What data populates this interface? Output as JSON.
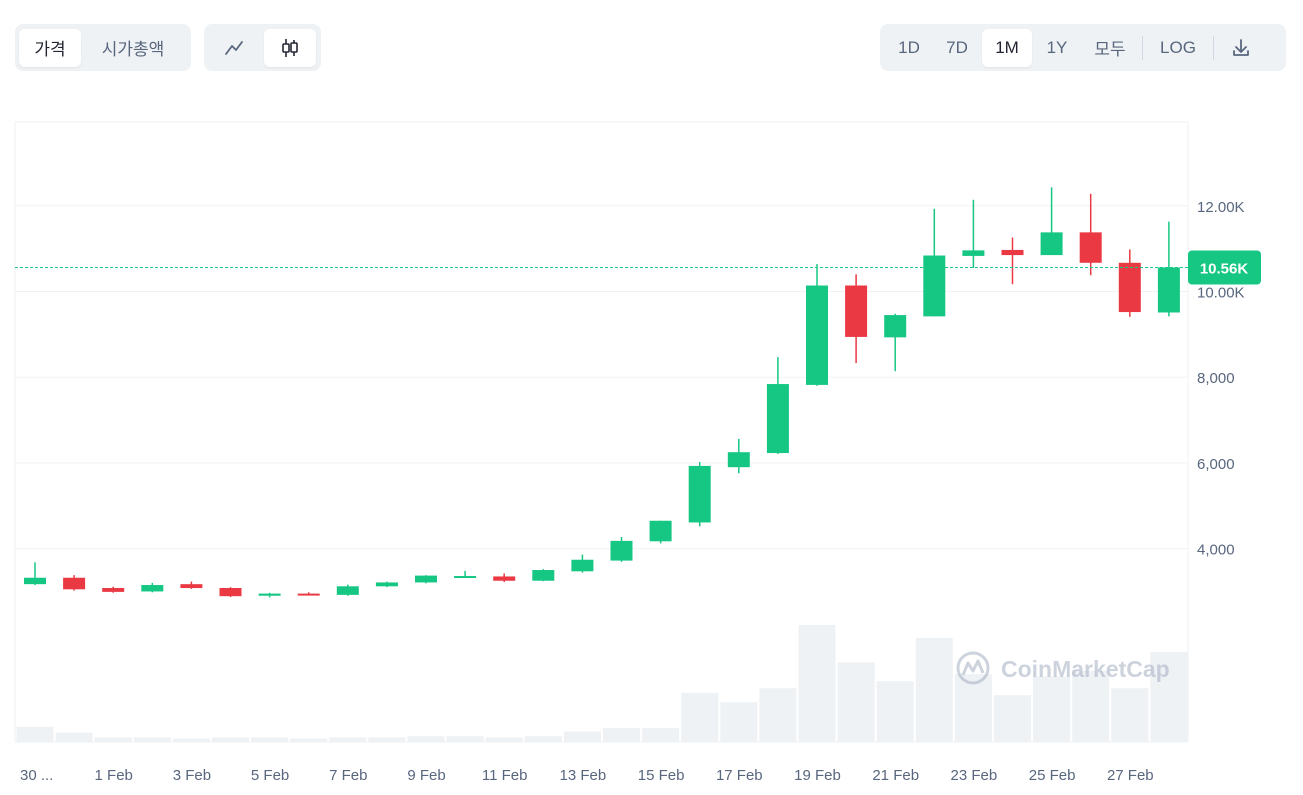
{
  "toolbar": {
    "left_tabs": [
      {
        "label": "가격",
        "active": true
      },
      {
        "label": "시가총액",
        "active": false
      }
    ],
    "chart_types": [
      {
        "icon": "line-chart-icon",
        "active": false
      },
      {
        "icon": "candlestick-chart-icon",
        "active": true
      }
    ],
    "ranges": [
      {
        "label": "1D",
        "active": false
      },
      {
        "label": "7D",
        "active": false
      },
      {
        "label": "1M",
        "active": true
      },
      {
        "label": "1Y",
        "active": false
      },
      {
        "label": "모두",
        "active": false
      }
    ],
    "log_label": "LOG",
    "download_icon": "download-icon"
  },
  "watermark": "CoinMarketCap",
  "colors": {
    "up": "#16c784",
    "down": "#ea3943",
    "volume": "#eff2f5",
    "grid": "#eff2f5",
    "current_price_line": "#16c784",
    "current_price_label_bg": "#16c784"
  },
  "chart_data": {
    "type": "candlestick",
    "title": "",
    "xlabel": "",
    "ylabel": "",
    "ylim": [
      0,
      14000
    ],
    "y_ticks": [
      {
        "value": 4000,
        "label": "4,000"
      },
      {
        "value": 6000,
        "label": "6,000"
      },
      {
        "value": 8000,
        "label": "8,000"
      },
      {
        "value": 10000,
        "label": "10.00K"
      },
      {
        "value": 12000,
        "label": "12.00K"
      }
    ],
    "x_tick_labels": [
      "30 ...",
      "1 Feb",
      "3 Feb",
      "5 Feb",
      "7 Feb",
      "9 Feb",
      "11 Feb",
      "13 Feb",
      "15 Feb",
      "17 Feb",
      "19 Feb",
      "21 Feb",
      "23 Feb",
      "25 Feb",
      "27 Feb"
    ],
    "current_price": {
      "value": 10560,
      "label": "10.56K"
    },
    "grid": true,
    "volume_scale_max": 100,
    "candles": [
      {
        "date": "30 Jan",
        "open": 3170,
        "high": 3680,
        "low": 3150,
        "close": 3320,
        "volume": 13
      },
      {
        "date": "31 Jan",
        "open": 3320,
        "high": 3380,
        "low": 3020,
        "close": 3050,
        "volume": 8
      },
      {
        "date": "1 Feb",
        "open": 3080,
        "high": 3110,
        "low": 2970,
        "close": 2990,
        "volume": 4
      },
      {
        "date": "2 Feb",
        "open": 3000,
        "high": 3200,
        "low": 2980,
        "close": 3150,
        "volume": 4
      },
      {
        "date": "3 Feb",
        "open": 3170,
        "high": 3230,
        "low": 3060,
        "close": 3080,
        "volume": 3
      },
      {
        "date": "4 Feb",
        "open": 3080,
        "high": 3100,
        "low": 2870,
        "close": 2890,
        "volume": 4
      },
      {
        "date": "5 Feb",
        "open": 2900,
        "high": 2970,
        "low": 2860,
        "close": 2950,
        "volume": 4
      },
      {
        "date": "6 Feb",
        "open": 2950,
        "high": 2980,
        "low": 2910,
        "close": 2920,
        "volume": 3
      },
      {
        "date": "7 Feb",
        "open": 2920,
        "high": 3160,
        "low": 2900,
        "close": 3120,
        "volume": 4
      },
      {
        "date": "8 Feb",
        "open": 3120,
        "high": 3230,
        "low": 3100,
        "close": 3210,
        "volume": 4
      },
      {
        "date": "9 Feb",
        "open": 3210,
        "high": 3380,
        "low": 3190,
        "close": 3370,
        "volume": 5
      },
      {
        "date": "10 Feb",
        "open": 3350,
        "high": 3480,
        "low": 3320,
        "close": 3360,
        "volume": 5
      },
      {
        "date": "11 Feb",
        "open": 3350,
        "high": 3420,
        "low": 3220,
        "close": 3250,
        "volume": 4
      },
      {
        "date": "12 Feb",
        "open": 3250,
        "high": 3520,
        "low": 3240,
        "close": 3500,
        "volume": 5
      },
      {
        "date": "13 Feb",
        "open": 3470,
        "high": 3860,
        "low": 3440,
        "close": 3740,
        "volume": 9
      },
      {
        "date": "14 Feb",
        "open": 3720,
        "high": 4270,
        "low": 3690,
        "close": 4180,
        "volume": 12
      },
      {
        "date": "15 Feb",
        "open": 4170,
        "high": 4650,
        "low": 4120,
        "close": 4650,
        "volume": 12
      },
      {
        "date": "16 Feb",
        "open": 4610,
        "high": 6020,
        "low": 4520,
        "close": 5930,
        "volume": 42
      },
      {
        "date": "17 Feb",
        "open": 5900,
        "high": 6560,
        "low": 5760,
        "close": 6250,
        "volume": 34
      },
      {
        "date": "18 Feb",
        "open": 6230,
        "high": 8470,
        "low": 6210,
        "close": 7840,
        "volume": 46
      },
      {
        "date": "19 Feb",
        "open": 7820,
        "high": 10640,
        "low": 7800,
        "close": 10140,
        "volume": 100
      },
      {
        "date": "20 Feb",
        "open": 10140,
        "high": 10400,
        "low": 8330,
        "close": 8940,
        "volume": 68
      },
      {
        "date": "21 Feb",
        "open": 8930,
        "high": 9480,
        "low": 8140,
        "close": 9450,
        "volume": 52
      },
      {
        "date": "22 Feb",
        "open": 9420,
        "high": 11930,
        "low": 9420,
        "close": 10840,
        "volume": 89
      },
      {
        "date": "23 Feb",
        "open": 10830,
        "high": 12140,
        "low": 10550,
        "close": 10960,
        "volume": 58
      },
      {
        "date": "24 Feb",
        "open": 10970,
        "high": 11260,
        "low": 10170,
        "close": 10850,
        "volume": 40
      },
      {
        "date": "25 Feb",
        "open": 10850,
        "high": 12430,
        "low": 10850,
        "close": 11380,
        "volume": 56
      },
      {
        "date": "26 Feb",
        "open": 11380,
        "high": 12280,
        "low": 10380,
        "close": 10670,
        "volume": 61
      },
      {
        "date": "27 Feb",
        "open": 10670,
        "high": 10980,
        "low": 9410,
        "close": 9520,
        "volume": 46
      },
      {
        "date": "28 Feb",
        "open": 9510,
        "high": 11630,
        "low": 9420,
        "close": 10560,
        "volume": 77
      }
    ]
  }
}
